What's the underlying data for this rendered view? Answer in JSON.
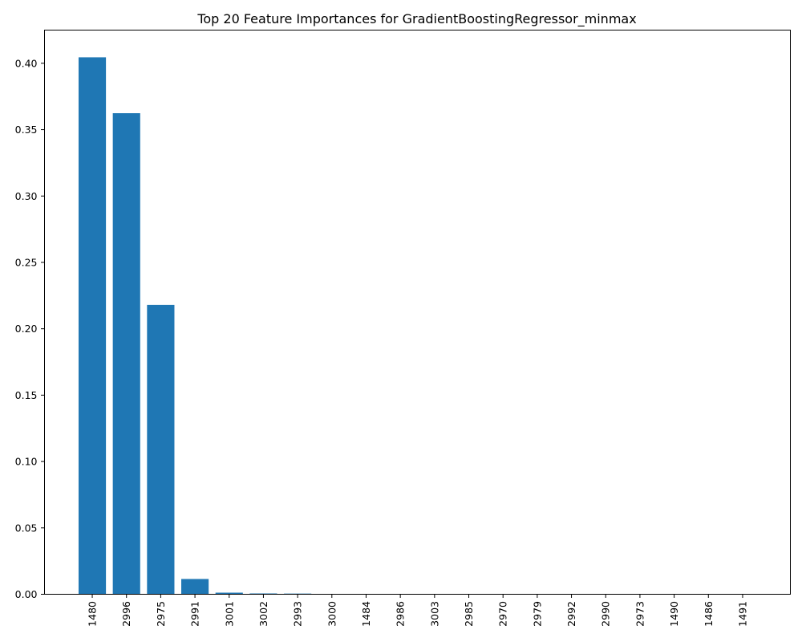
{
  "chart_data": {
    "type": "bar",
    "title": "Top 20 Feature Importances for GradientBoostingRegressor_minmax",
    "xlabel": "",
    "ylabel": "",
    "categories": [
      "1480",
      "2996",
      "2975",
      "2991",
      "3001",
      "3002",
      "2993",
      "3000",
      "1484",
      "2986",
      "3003",
      "2985",
      "2970",
      "2979",
      "2992",
      "2990",
      "2973",
      "1490",
      "1486",
      "1491"
    ],
    "values": [
      0.4045,
      0.3624,
      0.218,
      0.0115,
      0.0012,
      0.0006,
      0.0005,
      0.0001,
      0.0001,
      0.0001,
      5e-05,
      5e-05,
      4e-05,
      3e-05,
      3e-05,
      2e-05,
      2e-05,
      1e-05,
      1e-05,
      1e-05
    ],
    "ylim": [
      0,
      0.425
    ],
    "yticks": [
      0.0,
      0.05,
      0.1,
      0.15,
      0.2,
      0.25,
      0.3,
      0.35,
      0.4
    ],
    "ytick_labels": [
      "0.00",
      "0.05",
      "0.10",
      "0.15",
      "0.20",
      "0.25",
      "0.30",
      "0.35",
      "0.40"
    ],
    "grid": false,
    "bar_color": "#1f77b4"
  }
}
